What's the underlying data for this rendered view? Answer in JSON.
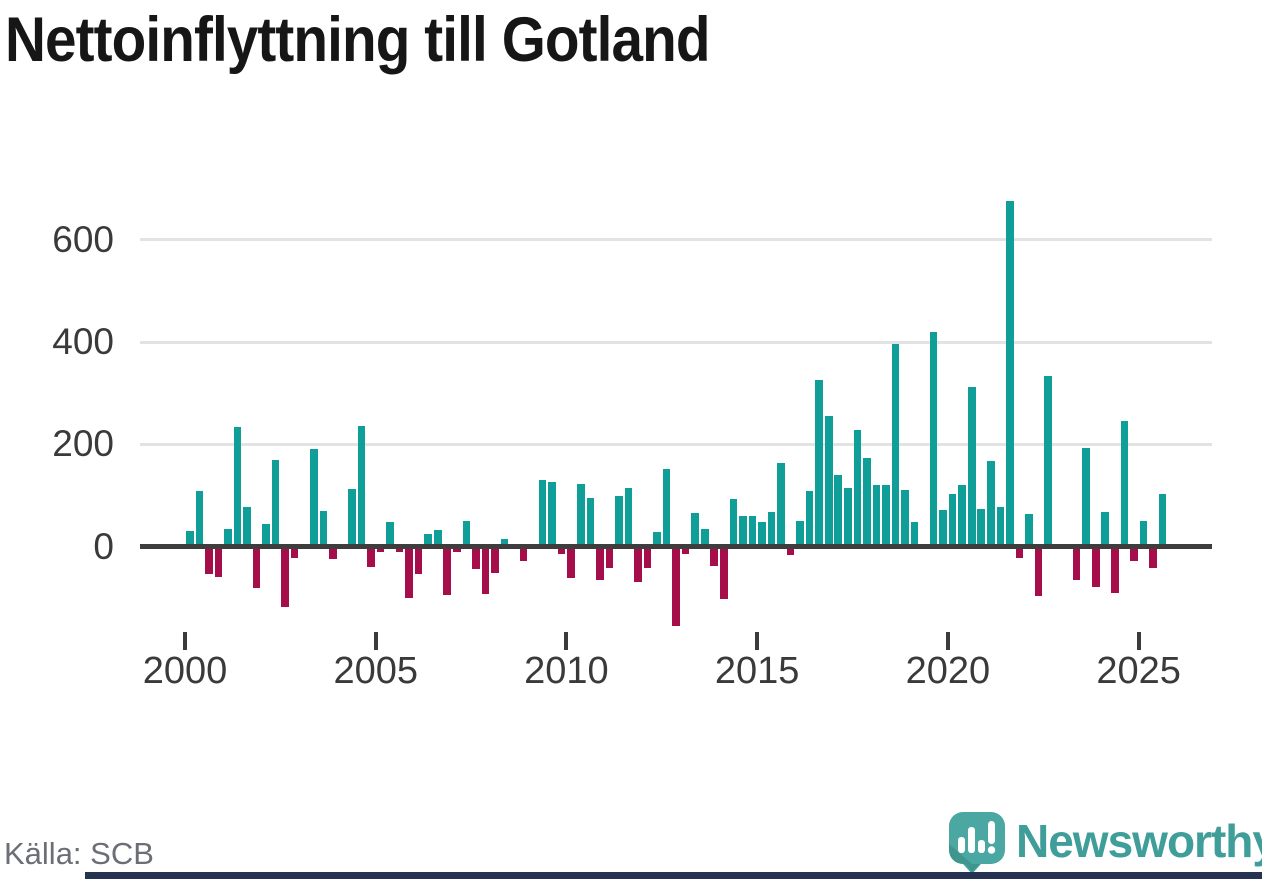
{
  "title": "Nettoinflyttning till Gotland",
  "source": "Källa: SCB",
  "branding": {
    "logo_text": "Newsworthy"
  },
  "colors": {
    "background": "#ffffff",
    "title": "#161616",
    "positive": "#109e98",
    "negative": "#a50d4b",
    "axis": "#3d3d3d",
    "grid": "#e3e3e3",
    "tick": "#3b3b3b",
    "tick_label": "#3a3a3a",
    "source_text": "#6b6e75",
    "logo_bubble": "#4ba7a1",
    "logo_bubble_shade": "#3e968f",
    "logo_text": "#3f9e99",
    "footer_bar": "#263252"
  },
  "chart_data": {
    "type": "bar",
    "title": "Nettoinflyttning till Gotland",
    "x_unit": "quarter",
    "xticks": [
      "2000",
      "2005",
      "2010",
      "2015",
      "2020",
      "2025"
    ],
    "yticks": [
      0,
      200,
      400,
      600
    ],
    "ylim": [
      -160,
      700
    ],
    "grid": true,
    "legend": false,
    "positive_color": "#109e98",
    "negative_color": "#a50d4b",
    "series_by_year": [
      {
        "year": 2000,
        "values": [
          30,
          108,
          -54,
          -60
        ]
      },
      {
        "year": 2001,
        "values": [
          35,
          233,
          78,
          -82
        ]
      },
      {
        "year": 2002,
        "values": [
          45,
          170,
          -118,
          -22
        ]
      },
      {
        "year": 2003,
        "values": [
          0,
          190,
          70,
          -25
        ]
      },
      {
        "year": 2004,
        "values": [
          0,
          113,
          235,
          -40
        ]
      },
      {
        "year": 2005,
        "values": [
          -10,
          48,
          -10,
          -100
        ]
      },
      {
        "year": 2006,
        "values": [
          -53,
          25,
          32,
          -94
        ]
      },
      {
        "year": 2007,
        "values": [
          -10,
          50,
          -45,
          -92
        ]
      },
      {
        "year": 2008,
        "values": [
          -52,
          15,
          0,
          -29
        ]
      },
      {
        "year": 2009,
        "values": [
          0,
          130,
          126,
          -15
        ]
      },
      {
        "year": 2010,
        "values": [
          -62,
          122,
          95,
          -65
        ]
      },
      {
        "year": 2011,
        "values": [
          -42,
          98,
          115,
          -70
        ]
      },
      {
        "year": 2012,
        "values": [
          -42,
          28,
          152,
          -155
        ]
      },
      {
        "year": 2013,
        "values": [
          -15,
          65,
          35,
          -38
        ]
      },
      {
        "year": 2014,
        "values": [
          -103,
          92,
          60,
          60
        ]
      },
      {
        "year": 2015,
        "values": [
          48,
          68,
          164,
          -17
        ]
      },
      {
        "year": 2016,
        "values": [
          50,
          109,
          325,
          255
        ]
      },
      {
        "year": 2017,
        "values": [
          140,
          115,
          228,
          174
        ]
      },
      {
        "year": 2018,
        "values": [
          121,
          121,
          396,
          111
        ]
      },
      {
        "year": 2019,
        "values": [
          47,
          0,
          419,
          72
        ]
      },
      {
        "year": 2020,
        "values": [
          103,
          120,
          312,
          74
        ]
      },
      {
        "year": 2021,
        "values": [
          167,
          77,
          676,
          -23
        ]
      },
      {
        "year": 2022,
        "values": [
          63,
          -97,
          334,
          0
        ]
      },
      {
        "year": 2023,
        "values": [
          0,
          -65,
          192,
          -80
        ]
      },
      {
        "year": 2024,
        "values": [
          68,
          -91,
          245,
          -29
        ]
      },
      {
        "year": 2025,
        "values": [
          49,
          -43,
          103
        ]
      }
    ]
  }
}
